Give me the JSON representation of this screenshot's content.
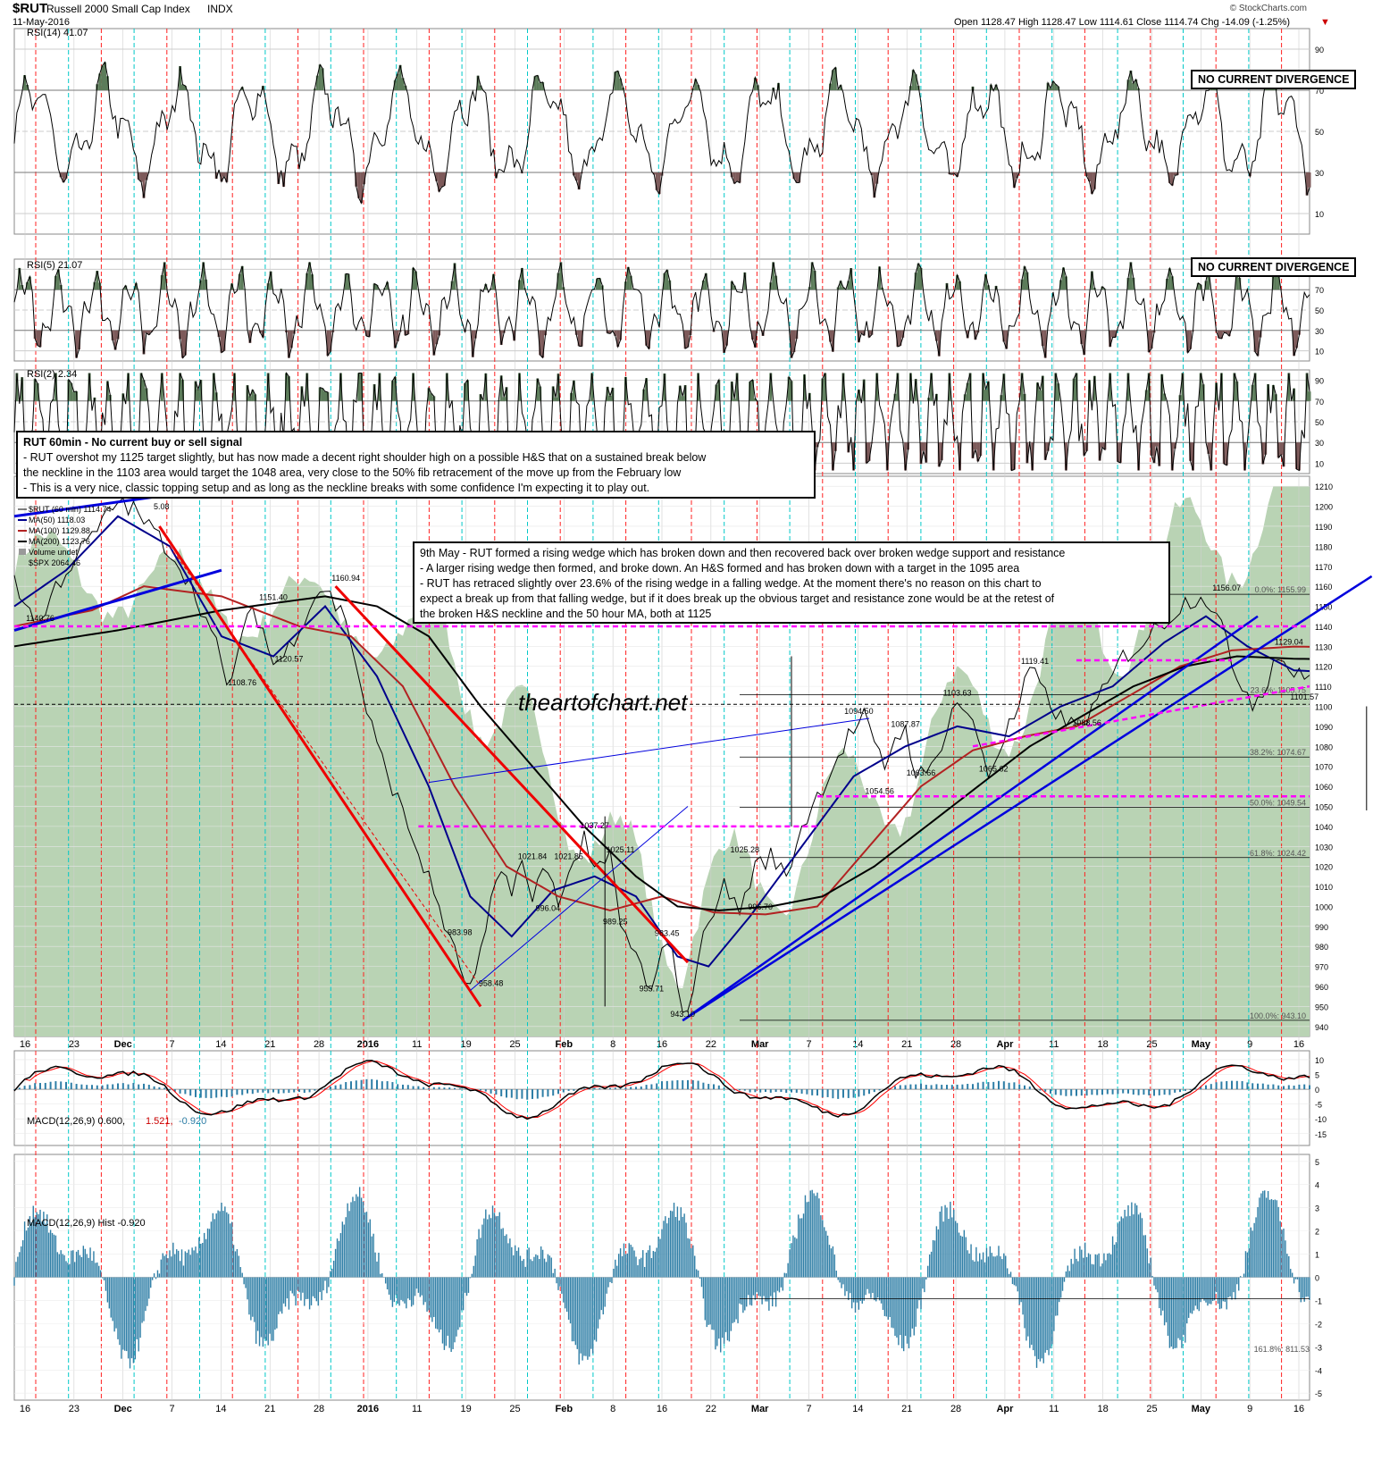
{
  "header": {
    "symbol": "$RUT",
    "name": "Russell 2000 Small Cap Index",
    "exchange": "INDX",
    "date": "11-May-2016",
    "ohlc": "Open 1128.47  High 1128.47  Low 1114.61  Close 1114.74  Chg -14.09 (-1.25%)",
    "ohlc_arrow": "▼",
    "brand": "© StockCharts.com"
  },
  "panels": {
    "rsi14": {
      "label": "RSI(14) 41.07",
      "badge": "NO CURRENT DIVERGENCE",
      "ticks": [
        "90",
        "70",
        "50",
        "30",
        "10"
      ]
    },
    "rsi5": {
      "label": "RSI(5) 21.07",
      "badge": "NO CURRENT DIVERGENCE",
      "ticks": [
        "90",
        "70",
        "50",
        "30",
        "10"
      ]
    },
    "rsi2": {
      "label": "RSI(2) 2.34",
      "ticks": [
        "90",
        "70",
        "50",
        "30",
        "10"
      ]
    },
    "price": {
      "legend": [
        "$RUT (60 min) 1114.74",
        "MA(50) 1118.03",
        "MA(100) 1129.88",
        "MA(200) 1123.76",
        "Volume undef",
        "$SPX 2064.46"
      ],
      "legend_extra": "5.08",
      "ticks": [
        "1210",
        "1200",
        "1190",
        "1180",
        "1170",
        "1160",
        "1150",
        "1140",
        "1130",
        "1120",
        "1110",
        "1100",
        "1090",
        "1080",
        "1070",
        "1060",
        "1050",
        "1040",
        "1030",
        "1020",
        "1010",
        "1000",
        "990",
        "980",
        "970",
        "960",
        "950",
        "940"
      ],
      "watermark": "theartofchart.net"
    },
    "macd": {
      "label": "MACD(12,26,9) 0.600,",
      "val1": "1.521,",
      "val2": "-0.920",
      "ticks": [
        "10",
        "5",
        "0",
        "-5",
        "-10",
        "-15"
      ]
    },
    "hist": {
      "label": "MACD(12,26,9) Hist -0.920",
      "ticks": [
        "5",
        "4",
        "3",
        "2",
        "1",
        "0",
        "-1",
        "-2",
        "-3",
        "-4",
        "-5"
      ],
      "fib": "161.8%: 811.53"
    }
  },
  "annotations": {
    "box1": [
      "RUT 60min - No current buy or sell signal",
      "- RUT overshot my 1125 target slightly, but has now made a decent right shoulder high on a possible H&S that on a sustained break below",
      "the neckline in the 1103 area would target the 1048 area, very close to the 50% fib retracement of the move up from the February low",
      "- This is a very nice, classic topping setup and as long as the neckline breaks with some confidence I'm expecting it to play out."
    ],
    "box2": [
      "9th May - RUT formed a rising wedge which has broken down and then recovered back over broken wedge support and resistance",
      "- A larger rising wedge then formed, and broke down. An H&S formed and has broken down with a target in the 1095 area",
      "- RUT has retraced slightly over 23.6% of the rising wedge in a falling wedge. At the moment there's no reason on this chart to",
      "expect a break up from that falling wedge, but if it does break up the obvious target and resistance zone would be at the retest of",
      "the broken H&S neckline and the 50 hour MA, both at 1125"
    ]
  },
  "chart_data": {
    "type": "line",
    "title": "$RUT Russell 2000 Small Cap Index INDX (60 min)",
    "ylim": [
      935,
      1215
    ],
    "x_tick_labels": [
      "16",
      "23",
      "Dec",
      "7",
      "14",
      "21",
      "28",
      "2016",
      "11",
      "19",
      "25",
      "Feb",
      "8",
      "16",
      "22",
      "Mar",
      "7",
      "14",
      "21",
      "28",
      "Apr",
      "11",
      "18",
      "25",
      "May",
      "9",
      "16"
    ],
    "series": [
      {
        "name": "$RUT (60 min)",
        "anchors": [
          [
            0,
            1165
          ],
          [
            2,
            1151
          ],
          [
            5,
            1141
          ],
          [
            8,
            1160
          ],
          [
            12,
            1175
          ],
          [
            16,
            1188
          ],
          [
            20,
            1203
          ],
          [
            23,
            1198
          ],
          [
            26,
            1190
          ],
          [
            30,
            1178
          ],
          [
            33,
            1166
          ],
          [
            36,
            1150
          ],
          [
            39,
            1130
          ],
          [
            41,
            1109
          ],
          [
            43,
            1125
          ],
          [
            46,
            1150
          ],
          [
            48,
            1138
          ],
          [
            50,
            1121
          ],
          [
            52,
            1125
          ],
          [
            55,
            1140
          ],
          [
            58,
            1155
          ],
          [
            60,
            1160
          ],
          [
            62,
            1150
          ],
          [
            64,
            1145
          ],
          [
            67,
            1108
          ],
          [
            70,
            1080
          ],
          [
            73,
            1060
          ],
          [
            76,
            1040
          ],
          [
            79,
            1020
          ],
          [
            82,
            1000
          ],
          [
            84,
            983
          ],
          [
            86,
            970
          ],
          [
            88,
            958
          ],
          [
            90,
            975
          ],
          [
            92,
            1000
          ],
          [
            94,
            1018
          ],
          [
            96,
            1010
          ],
          [
            98,
            1022
          ],
          [
            100,
            1000
          ],
          [
            102,
            1021
          ],
          [
            105,
            1005
          ],
          [
            108,
            1020
          ],
          [
            110,
            1037
          ],
          [
            112,
            1015
          ],
          [
            115,
            1025
          ],
          [
            117,
            990
          ],
          [
            120,
            975
          ],
          [
            123,
            956
          ],
          [
            125,
            975
          ],
          [
            127,
            983
          ],
          [
            129,
            943
          ],
          [
            131,
            960
          ],
          [
            134,
            995
          ],
          [
            137,
            1010
          ],
          [
            140,
            998
          ],
          [
            143,
            1020
          ],
          [
            146,
            1025
          ],
          [
            149,
            1015
          ],
          [
            152,
            1040
          ],
          [
            155,
            1055
          ],
          [
            158,
            1070
          ],
          [
            161,
            1085
          ],
          [
            164,
            1094.5
          ],
          [
            166,
            1080
          ],
          [
            168,
            1070
          ],
          [
            170,
            1085
          ],
          [
            172,
            1087.87
          ],
          [
            174,
            1068
          ],
          [
            176,
            1064
          ],
          [
            178,
            1075
          ],
          [
            180,
            1090
          ],
          [
            182,
            1103.63
          ],
          [
            184,
            1095
          ],
          [
            186,
            1085
          ],
          [
            188,
            1066
          ],
          [
            190,
            1078
          ],
          [
            192,
            1090
          ],
          [
            194,
            1100
          ],
          [
            196,
            1119.41
          ],
          [
            199,
            1105
          ],
          [
            202,
            1094
          ],
          [
            205,
            1089
          ],
          [
            208,
            1098
          ],
          [
            211,
            1110
          ],
          [
            214,
            1125
          ],
          [
            217,
            1130
          ],
          [
            220,
            1138
          ],
          [
            223,
            1145
          ],
          [
            226,
            1152
          ],
          [
            229,
            1156
          ],
          [
            231,
            1151
          ],
          [
            233,
            1140
          ],
          [
            235,
            1120
          ],
          [
            237,
            1112
          ],
          [
            239,
            1102
          ],
          [
            241,
            1108
          ],
          [
            243,
            1122
          ],
          [
            245,
            1125
          ],
          [
            247,
            1115
          ]
        ]
      },
      {
        "name": "MA(50)",
        "anchors": [
          [
            0,
            1150
          ],
          [
            10,
            1168
          ],
          [
            20,
            1195
          ],
          [
            30,
            1180
          ],
          [
            40,
            1135
          ],
          [
            50,
            1125
          ],
          [
            60,
            1150
          ],
          [
            70,
            1115
          ],
          [
            80,
            1060
          ],
          [
            88,
            1005
          ],
          [
            96,
            985
          ],
          [
            104,
            1008
          ],
          [
            112,
            1015
          ],
          [
            120,
            1005
          ],
          [
            128,
            975
          ],
          [
            134,
            970
          ],
          [
            142,
            995
          ],
          [
            152,
            1030
          ],
          [
            162,
            1065
          ],
          [
            172,
            1080
          ],
          [
            182,
            1090
          ],
          [
            192,
            1085
          ],
          [
            202,
            1100
          ],
          [
            212,
            1110
          ],
          [
            222,
            1132
          ],
          [
            230,
            1145
          ],
          [
            238,
            1130
          ],
          [
            247,
            1118
          ]
        ]
      },
      {
        "name": "MA(100)",
        "anchors": [
          [
            0,
            1140
          ],
          [
            15,
            1148
          ],
          [
            25,
            1160
          ],
          [
            40,
            1155
          ],
          [
            55,
            1140
          ],
          [
            65,
            1135
          ],
          [
            75,
            1110
          ],
          [
            85,
            1060
          ],
          [
            95,
            1020
          ],
          [
            105,
            1005
          ],
          [
            115,
            998
          ],
          [
            125,
            1005
          ],
          [
            135,
            997
          ],
          [
            145,
            996
          ],
          [
            155,
            1000
          ],
          [
            165,
            1030
          ],
          [
            175,
            1060
          ],
          [
            185,
            1078
          ],
          [
            195,
            1085
          ],
          [
            205,
            1090
          ],
          [
            215,
            1105
          ],
          [
            225,
            1120
          ],
          [
            235,
            1128
          ],
          [
            247,
            1129.88
          ]
        ]
      },
      {
        "name": "MA(200)",
        "anchors": [
          [
            0,
            1130
          ],
          [
            20,
            1138
          ],
          [
            40,
            1148
          ],
          [
            60,
            1155
          ],
          [
            70,
            1150
          ],
          [
            80,
            1135
          ],
          [
            90,
            1100
          ],
          [
            100,
            1070
          ],
          [
            110,
            1040
          ],
          [
            120,
            1015
          ],
          [
            128,
            1000
          ],
          [
            136,
            998
          ],
          [
            146,
            1000
          ],
          [
            156,
            1005
          ],
          [
            166,
            1020
          ],
          [
            176,
            1040
          ],
          [
            186,
            1060
          ],
          [
            196,
            1080
          ],
          [
            206,
            1095
          ],
          [
            216,
            1110
          ],
          [
            226,
            1120
          ],
          [
            236,
            1125
          ],
          [
            247,
            1123.76
          ]
        ]
      }
    ],
    "price_labels": [
      "1140.76",
      "1151.40",
      "1160.94",
      "1108.76",
      "1120.57",
      "983.98",
      "958.48",
      "1021.84",
      "1021.85",
      "996.04",
      "1037.27",
      "1025.11",
      "989.25",
      "983.45",
      "955.71",
      "943.10",
      "1025.28",
      "996.70",
      "1094.50",
      "1087.87",
      "1054.56",
      "1063.66",
      "1103.63",
      "1065.62",
      "1119.41",
      "1088.56",
      "1156.07",
      "1129.04",
      "1101.57"
    ],
    "fib_levels": [
      {
        "label": "0.0%: 1155.99",
        "value": 1155.99
      },
      {
        "label": "23.6%: 1105.75",
        "value": 1105.75
      },
      {
        "label": "38.2%: 1074.67",
        "value": 1074.67
      },
      {
        "label": "50.0%: 1049.54",
        "value": 1049.54
      },
      {
        "label": "61.8%: 1024.42",
        "value": 1024.42
      },
      {
        "label": "100.0%: 943.10",
        "value": 943.1
      }
    ],
    "grid": true,
    "legend": "top-left",
    "colors": {
      "price": "#000000",
      "ma50": "#00008b",
      "ma100": "#b22222",
      "ma200": "#000000",
      "spx_area": "#b9d3b4",
      "rsi_up": "#5c7c5a",
      "rsi_down": "#7d5a5a",
      "hist": "#2e7ea6",
      "signal": "#ff0000",
      "neckline": "#ff00ff"
    }
  }
}
